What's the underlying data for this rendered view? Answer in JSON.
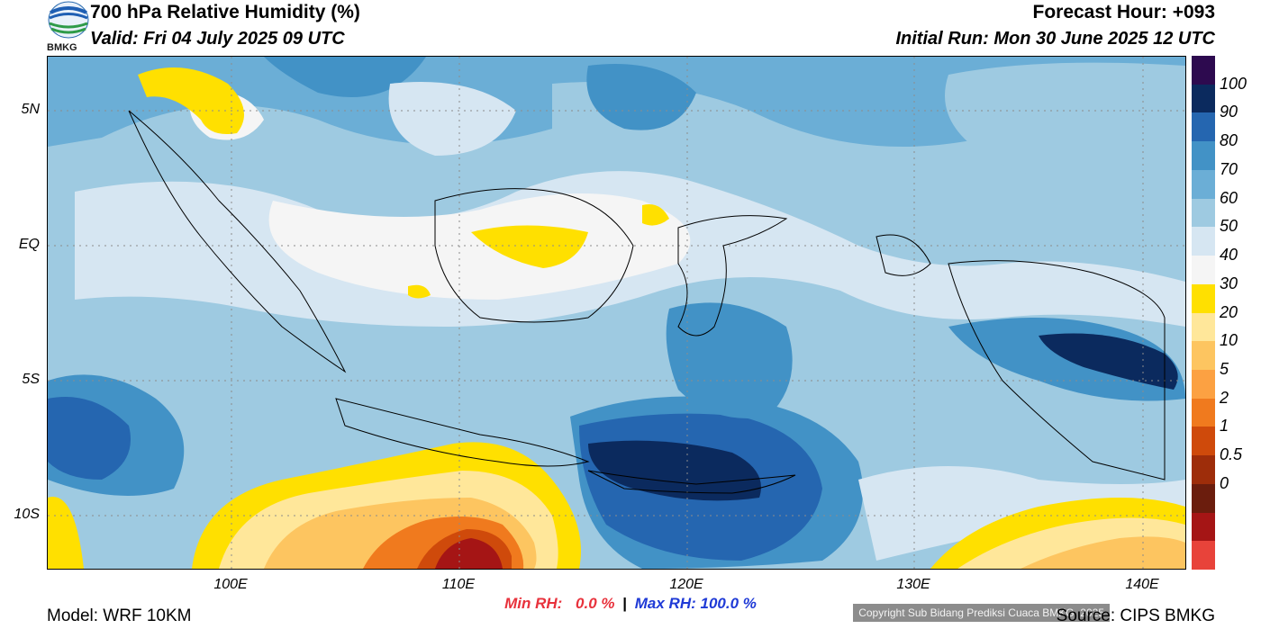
{
  "header": {
    "title": "700 hPa Relative Humidity (%)",
    "valid": "Valid: Fri 04 July 2025 09 UTC",
    "forecast_hour": "Forecast Hour: +093",
    "initial_run": "Initial Run: Mon 30 June 2025 12 UTC",
    "logo_text": "BMKG"
  },
  "map": {
    "lat_labels": [
      "5N",
      "EQ",
      "5S",
      "10S"
    ],
    "lon_labels": [
      "100E",
      "110E",
      "120E",
      "130E",
      "140E"
    ],
    "copyright": "Copyright Sub Bidang Prediksi Cuaca BMKG, 2025"
  },
  "stats": {
    "min_label": "Min RH:",
    "min_value": "0.0 %",
    "separator": "|",
    "max_label": "Max RH:",
    "max_value": "100.0 %",
    "min_color": "#e8323c",
    "max_color": "#1f3ad6"
  },
  "footer": {
    "model": "Model: WRF 10KM",
    "source": "Source: CIPS BMKG"
  },
  "colorbar": {
    "labels": [
      "100",
      "90",
      "80",
      "70",
      "60",
      "50",
      "40",
      "30",
      "20",
      "10",
      "5",
      "2",
      "1",
      "0.5",
      "0"
    ],
    "colors": [
      "#2d0a4f",
      "#0b2a5e",
      "#2566b0",
      "#4292c6",
      "#6baed6",
      "#9ecae1",
      "#d6e6f2",
      "#f5f5f5",
      "#ffe000",
      "#ffe79a",
      "#fdc560",
      "#fca142",
      "#f07a1e",
      "#cf4a0b",
      "#9e2d0a",
      "#6b1d0d",
      "#a51515",
      "#e8433a"
    ]
  }
}
